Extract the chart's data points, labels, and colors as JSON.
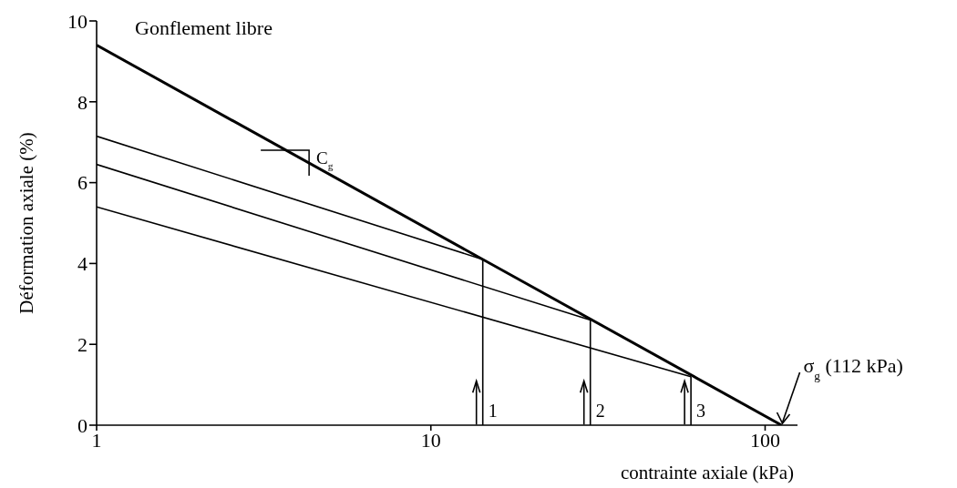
{
  "chart_data": {
    "type": "line",
    "xlabel": "contrainte axiale (kPa)",
    "ylabel": "Déformation axiale (%)",
    "log": "x",
    "xlim": [
      1,
      125
    ],
    "xticks": [
      1,
      10,
      100
    ],
    "ylim": [
      0,
      10
    ],
    "yticks": [
      0,
      2,
      4,
      6,
      8,
      10
    ],
    "grid": false,
    "legend": false,
    "marker": "none",
    "line_style": "solid",
    "series": [
      {
        "name": "Gonflement libre",
        "color": "#000000",
        "x": [
          1,
          112
        ],
        "values": [
          9.4,
          0
        ]
      },
      {
        "color": "#000000",
        "x": [
          1,
          14.3
        ],
        "values": [
          7.15,
          4.1
        ]
      },
      {
        "color": "#000000",
        "x": [
          1,
          30
        ],
        "values": [
          6.45,
          2.6
        ]
      },
      {
        "color": "#000000",
        "x": [
          1,
          60
        ],
        "values": [
          5.4,
          1.2
        ]
      },
      {
        "color": "#000000",
        "x": [
          14.3,
          14.3
        ],
        "values": [
          0,
          4.1
        ]
      },
      {
        "color": "#000000",
        "x": [
          30,
          30
        ],
        "values": [
          0,
          2.6
        ]
      },
      {
        "color": "#000000",
        "x": [
          60,
          60
        ],
        "values": [
          0,
          1.2
        ]
      }
    ],
    "annotations": [
      {
        "text": "C$_{g}$",
        "x": 4.9,
        "y": 6.35
      },
      {
        "text": "σ$_{g}$ (112 kPa)",
        "x": 112,
        "y": 0
      },
      {
        "text": "1",
        "x": 14.3,
        "y": 0.6
      },
      {
        "text": "2",
        "x": 30,
        "y": 0.6
      },
      {
        "text": "3",
        "x": 60,
        "y": 0.6
      }
    ]
  }
}
